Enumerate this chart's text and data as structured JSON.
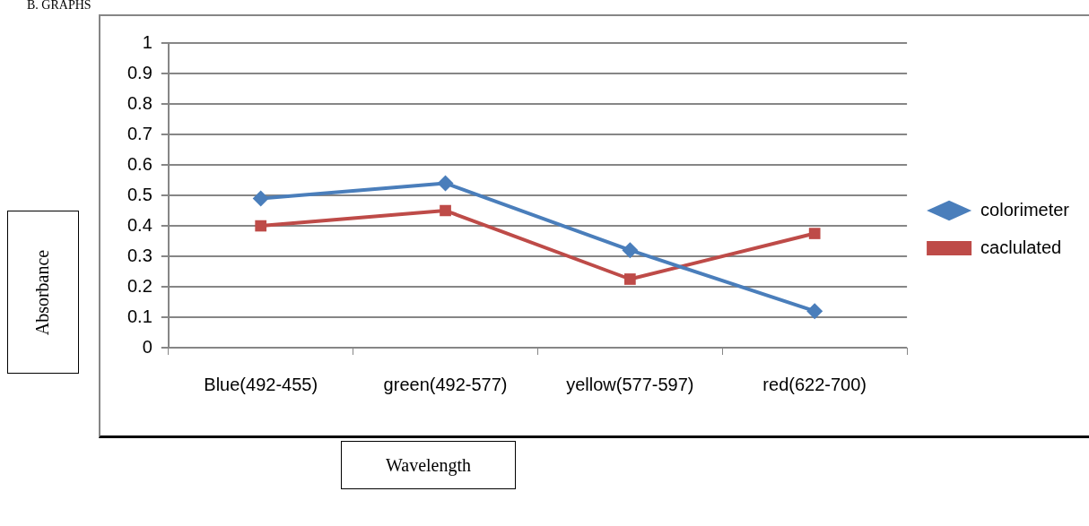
{
  "chart_data": {
    "type": "line",
    "annotations": [
      "B. GRAPHS"
    ],
    "xlabel": "Wavelength",
    "ylabel": "Absorbance",
    "categories": [
      "Blue(492-455)",
      "green(492-577)",
      "yellow(577-597)",
      "red(622-700)"
    ],
    "series": [
      {
        "name": "colorimeter",
        "color": "#4a7ebb",
        "marker": "diamond",
        "values": [
          0.49,
          0.54,
          0.32,
          0.12
        ]
      },
      {
        "name": "caclulated",
        "color": "#be4b48",
        "marker": "square",
        "values": [
          0.4,
          0.45,
          0.225,
          0.375
        ]
      }
    ],
    "ylim": [
      0,
      1
    ],
    "yticks": [
      0,
      0.1,
      0.2,
      0.3,
      0.4,
      0.5,
      0.6,
      0.7,
      0.8,
      0.9,
      1
    ],
    "grid": "y",
    "legend": "right",
    "line_style": "solid"
  }
}
